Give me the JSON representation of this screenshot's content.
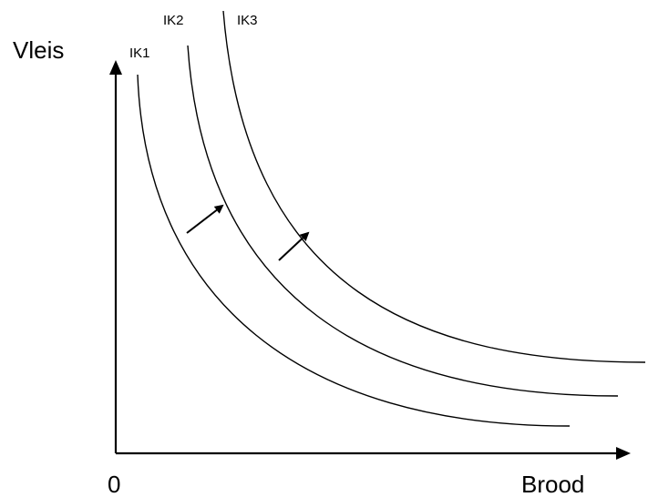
{
  "axes": {
    "y_label": "Vleis",
    "x_label": "Brood",
    "origin_label": "0"
  },
  "curves": [
    {
      "label": "IK1"
    },
    {
      "label": "IK2"
    },
    {
      "label": "IK3"
    }
  ],
  "colors": {
    "ink": "#000000",
    "background": "#ffffff"
  }
}
